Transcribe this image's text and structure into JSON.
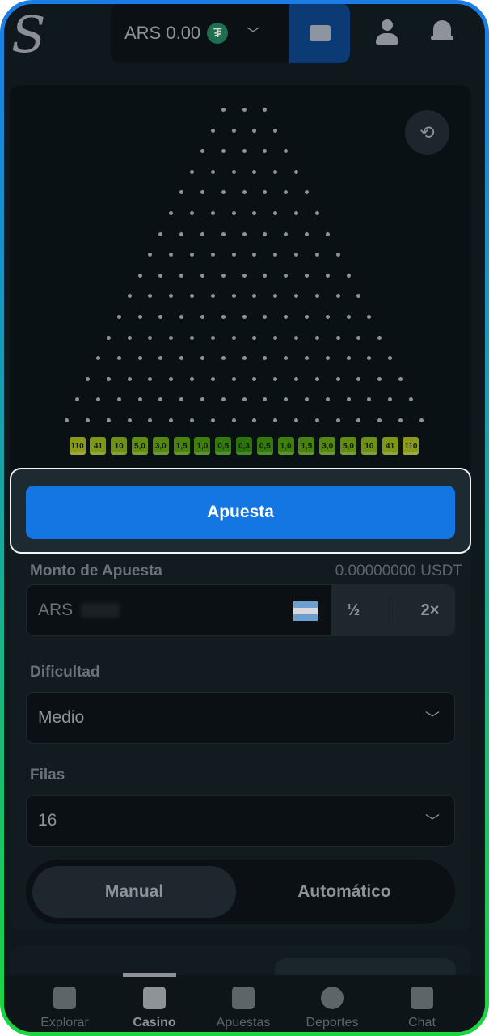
{
  "header": {
    "logo": "S",
    "balance": "ARS 0.00",
    "currency_icon": "tether-icon",
    "wallet_icon": "wallet-icon",
    "user_icon": "user-icon",
    "bell_icon": "bell-icon"
  },
  "game": {
    "rows": 16,
    "history_icon": "history-timer-icon",
    "multipliers": [
      "110",
      "41",
      "10",
      "5,0",
      "3,0",
      "1,5",
      "1,0",
      "0,5",
      "0,3",
      "0,5",
      "1,0",
      "1,5",
      "3,0",
      "5,0",
      "10",
      "41",
      "110"
    ],
    "bucket_colors": [
      "#8b9a1c",
      "#7f9619",
      "#6e9016",
      "#628c14",
      "#558712",
      "#4a8210",
      "#3f7e0e",
      "#34790c",
      "#2a740a",
      "#34790c",
      "#3f7e0e",
      "#4a8210",
      "#558712",
      "#628c14",
      "#6e9016",
      "#7f9619",
      "#8b9a1c"
    ]
  },
  "bet_button": "Apuesta",
  "form": {
    "amount_label": "Monto de Apuesta",
    "amount_usdt": "0.00000000 USDT",
    "amount_currency": "ARS",
    "half": "½",
    "double": "2×",
    "difficulty_label": "Dificultad",
    "difficulty_value": "Medio",
    "rows_label": "Filas",
    "rows_value": "16",
    "mode_manual": "Manual",
    "mode_auto": "Automático"
  },
  "nav": [
    {
      "label": "Explorar",
      "active": false
    },
    {
      "label": "Casino",
      "active": true
    },
    {
      "label": "Apuestas",
      "active": false
    },
    {
      "label": "Deportes",
      "active": false
    },
    {
      "label": "Chat",
      "active": false
    }
  ]
}
